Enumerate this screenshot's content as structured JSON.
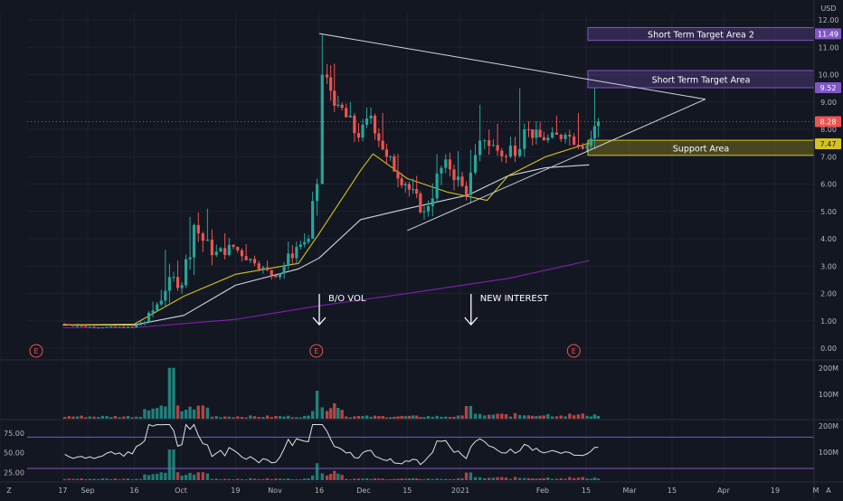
{
  "colors": {
    "background": "#131722",
    "grid": "#1e222d",
    "axis_text": "#b2b5be",
    "up": "#26a69a",
    "down": "#ef5350",
    "ma_fast": "#d4c21f",
    "ma_slow": "#d1d4dc",
    "ma_long": "#7b1fa2",
    "pane_divider": "#2a2e39",
    "target_zone": "#7e57c2",
    "support_zone": "#d4c21f",
    "earnings": "#ef5350",
    "rsi_line": "#e0e3eb",
    "rsi_band": "#7e57c2"
  },
  "axis": {
    "currency": "USD",
    "y_ticks": [
      "12.00",
      "11.00",
      "10.00",
      "9.00",
      "8.00",
      "7.00",
      "6.00",
      "5.00",
      "4.00",
      "3.00",
      "2.00",
      "1.00",
      "0.00"
    ],
    "x_ticks": [
      "17",
      "Sep",
      "16",
      "Oct",
      "19",
      "Nov",
      "16",
      "Dec",
      "15",
      "2021",
      "Feb",
      "15",
      "Mar",
      "15",
      "Apr",
      "19",
      "M"
    ],
    "volume_ticks": [
      "200M",
      "100M"
    ],
    "rsi_ticks_left": [
      "75.00",
      "50.00",
      "25.00"
    ],
    "rsi_ticks_right": [
      "200M",
      "100M"
    ],
    "corner_icon": "tradingview-logo",
    "corner_icon_right": "A"
  },
  "price_tags": [
    {
      "text": "11.49",
      "value": 11.49,
      "color": "#7e57c2",
      "text_color": "#ffffff"
    },
    {
      "text": "9.52",
      "value": 9.52,
      "color": "#7e57c2",
      "text_color": "#ffffff"
    },
    {
      "text": "8.28",
      "value": 8.28,
      "color": "#ef5350",
      "text_color": "#ffffff"
    },
    {
      "text": "7.47",
      "value": 7.47,
      "color": "#d4c21f",
      "text_color": "#131722"
    }
  ],
  "zones": [
    {
      "label": "Short Term Target Area 2",
      "from": 11.25,
      "to": 11.72
    },
    {
      "label": "Short Term Target Area",
      "from": 9.52,
      "to": 10.15
    },
    {
      "label": "Support Area",
      "from": 7.05,
      "to": 7.6
    }
  ],
  "annotations": [
    {
      "label": "B/O VOL",
      "at": "Nov 16"
    },
    {
      "label": "NEW INTEREST",
      "at": "Jan 5"
    }
  ],
  "earnings_marker": "E",
  "chart_data": {
    "type": "candlestick",
    "x_axis": "date",
    "y_axis": "price (USD)",
    "ylim": [
      0,
      12.5
    ],
    "price_current": 8.28,
    "series": [
      {
        "name": "price",
        "ohlc_summary": [
          [
            "Aug 17",
            0.9,
            0.9,
            0.72,
            0.78
          ],
          [
            "Sep 1",
            0.78,
            0.85,
            0.7,
            0.76
          ],
          [
            "Sep 16",
            0.76,
            1.0,
            0.72,
            0.95
          ],
          [
            "Sep 20",
            0.95,
            1.7,
            0.9,
            1.6
          ],
          [
            "Sep 24",
            1.6,
            3.6,
            1.5,
            2.6
          ],
          [
            "Sep 28",
            2.6,
            3.2,
            2.0,
            2.3
          ],
          [
            "Oct 2",
            2.3,
            4.8,
            2.2,
            4.5
          ],
          [
            "Oct 6",
            4.5,
            5.1,
            3.0,
            3.4
          ],
          [
            "Oct 12",
            3.4,
            4.2,
            3.0,
            3.7
          ],
          [
            "Oct 19",
            3.7,
            3.8,
            2.8,
            3.1
          ],
          [
            "Oct 26",
            3.1,
            3.2,
            2.5,
            2.6
          ],
          [
            "Nov 2",
            2.6,
            3.9,
            2.5,
            3.7
          ],
          [
            "Nov 9",
            3.7,
            4.2,
            3.6,
            4.0
          ],
          [
            "Nov 13",
            4.0,
            6.2,
            4.0,
            6.0
          ],
          [
            "Nov 16",
            6.0,
            11.5,
            6.0,
            10.0
          ],
          [
            "Nov 18",
            10.0,
            10.4,
            8.4,
            8.9
          ],
          [
            "Nov 23",
            8.9,
            9.0,
            7.0,
            7.7
          ],
          [
            "Nov 30",
            7.7,
            8.8,
            7.4,
            8.5
          ],
          [
            "Dec 4",
            8.5,
            8.6,
            6.7,
            7.0
          ],
          [
            "Dec 9",
            7.0,
            7.1,
            5.6,
            6.0
          ],
          [
            "Dec 15",
            6.0,
            6.3,
            4.7,
            5.0
          ],
          [
            "Dec 21",
            5.0,
            7.1,
            4.7,
            6.9
          ],
          [
            "Dec 28",
            6.9,
            7.2,
            5.4,
            5.6
          ],
          [
            "Jan 4",
            5.6,
            8.9,
            5.3,
            7.6
          ],
          [
            "Jan 11",
            7.6,
            8.2,
            6.6,
            7.0
          ],
          [
            "Jan 19",
            7.0,
            9.5,
            6.8,
            8.0
          ],
          [
            "Jan 26",
            8.0,
            8.3,
            7.0,
            7.6
          ],
          [
            "Feb 2",
            7.6,
            8.5,
            7.2,
            7.8
          ],
          [
            "Feb 9",
            7.8,
            8.6,
            7.2,
            7.4
          ],
          [
            "Feb 16",
            7.4,
            9.5,
            7.3,
            8.28
          ]
        ]
      },
      {
        "name": "MA fast",
        "points": [
          [
            "Aug 17",
            0.85
          ],
          [
            "Sep 16",
            0.88
          ],
          [
            "Oct 2",
            1.9
          ],
          [
            "Oct 19",
            2.7
          ],
          [
            "Nov 9",
            3.1
          ],
          [
            "Nov 16",
            4.2
          ],
          [
            "Nov 30",
            6.5
          ],
          [
            "Dec 4",
            7.1
          ],
          [
            "Dec 15",
            6.2
          ],
          [
            "Dec 28",
            5.7
          ],
          [
            "Jan 11",
            5.4
          ],
          [
            "Jan 19",
            6.3
          ],
          [
            "Feb 2",
            7.0
          ],
          [
            "Feb 16",
            7.5
          ]
        ]
      },
      {
        "name": "MA slow",
        "points": [
          [
            "Aug 17",
            0.85
          ],
          [
            "Sep 16",
            0.85
          ],
          [
            "Oct 2",
            1.2
          ],
          [
            "Oct 19",
            2.3
          ],
          [
            "Nov 9",
            2.9
          ],
          [
            "Nov 16",
            3.3
          ],
          [
            "Nov 30",
            4.7
          ],
          [
            "Dec 15",
            5.1
          ],
          [
            "Jan 4",
            5.6
          ],
          [
            "Jan 19",
            6.3
          ],
          [
            "Feb 2",
            6.6
          ],
          [
            "Feb 16",
            6.7
          ]
        ]
      },
      {
        "name": "MA long",
        "points": [
          [
            "Aug 17",
            0.75
          ],
          [
            "Sep 16",
            0.75
          ],
          [
            "Oct 19",
            1.05
          ],
          [
            "Nov 16",
            1.55
          ],
          [
            "Dec 15",
            2.0
          ],
          [
            "Jan 19",
            2.55
          ],
          [
            "Feb 16",
            3.2
          ]
        ]
      }
    ],
    "trendlines": [
      {
        "from": [
          "Nov 16",
          11.5
        ],
        "to": [
          "Mar 26",
          9.1
        ]
      },
      {
        "from": [
          "Dec 15",
          4.3
        ],
        "to": [
          "Mar 26",
          9.1
        ]
      }
    ],
    "volume_peaks_millions": [
      {
        "at": "Sep 28",
        "value": 200
      },
      {
        "at": "Nov 16",
        "value": 110
      },
      {
        "at": "Jan 4",
        "value": 50
      }
    ],
    "rsi": {
      "upper": 70,
      "lower": 30,
      "last": 62
    }
  }
}
